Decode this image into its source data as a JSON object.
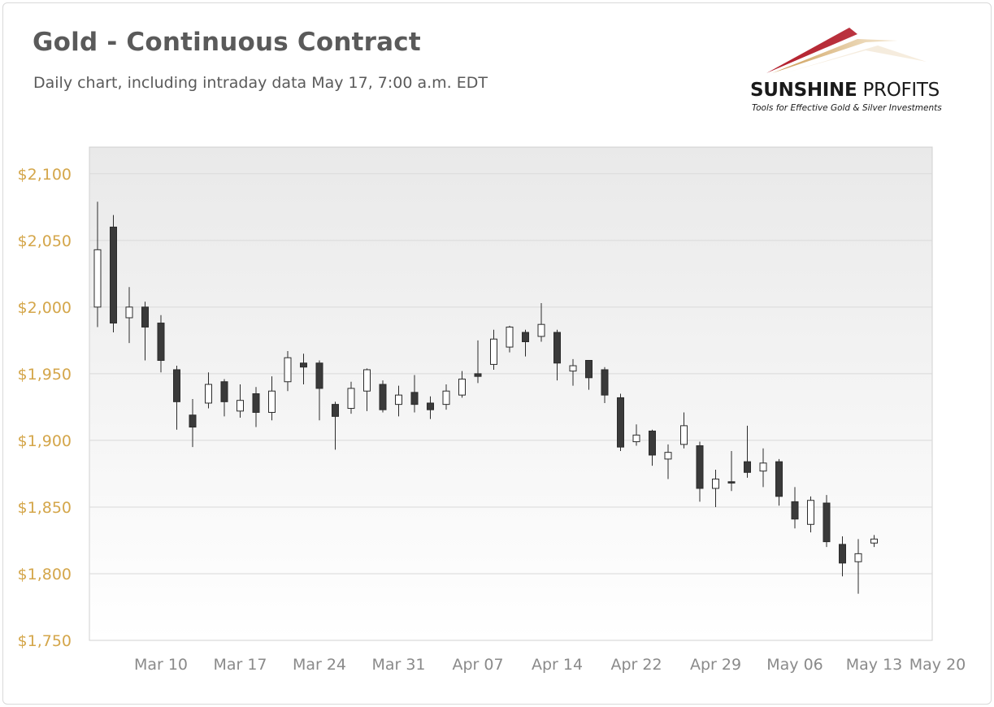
{
  "header": {
    "title": "Gold - Continuous Contract",
    "subtitle": "Daily chart, including intraday data May 17, 7:00 a.m. EDT"
  },
  "logo": {
    "name_bold": "SUNSHINE",
    "name_light": " PROFITS",
    "tagline": "Tools for Effective Gold & Silver Investments"
  },
  "colors": {
    "up_fill": "#ffffff",
    "down_fill": "#3a3a3a",
    "candle_stroke": "#2b2b2b",
    "y_tick_color": "#d4a64a",
    "x_tick_color": "#8a8a8a",
    "gridline": "#d9d9d9"
  },
  "chart_data": {
    "type": "candlestick",
    "title": "Gold - Continuous Contract",
    "subtitle": "Daily chart, including intraday data May 17, 7:00 a.m. EDT",
    "ylim": [
      1750,
      2120
    ],
    "y_ticks": [
      1750,
      1800,
      1850,
      1900,
      1950,
      2000,
      2050,
      2100
    ],
    "y_tick_labels": [
      "$1,750",
      "$1,800",
      "$1,850",
      "$1,900",
      "$1,950",
      "$2,000",
      "$2,050",
      "$2,100"
    ],
    "x_tick_labels": [
      "Mar 10",
      "Mar 17",
      "Mar 24",
      "Mar 31",
      "Apr 07",
      "Apr 14",
      "Apr 22",
      "Apr 29",
      "May 06",
      "May 13",
      "May 20"
    ],
    "grid": true,
    "legend": "none",
    "candles": [
      {
        "date": "Mar 08",
        "open": 2000,
        "high": 2079,
        "low": 1985,
        "close": 2043
      },
      {
        "date": "Mar 09",
        "open": 2060,
        "high": 2069,
        "low": 1981,
        "close": 1988
      },
      {
        "date": "Mar 10",
        "open": 1992,
        "high": 2015,
        "low": 1973,
        "close": 2000
      },
      {
        "date": "Mar 11",
        "open": 2000,
        "high": 2004,
        "low": 1960,
        "close": 1985
      },
      {
        "date": "Mar 14",
        "open": 1988,
        "high": 1994,
        "low": 1951,
        "close": 1960
      },
      {
        "date": "Mar 15",
        "open": 1953,
        "high": 1956,
        "low": 1908,
        "close": 1929
      },
      {
        "date": "Mar 16",
        "open": 1919,
        "high": 1931,
        "low": 1895,
        "close": 1910
      },
      {
        "date": "Mar 17",
        "open": 1928,
        "high": 1951,
        "low": 1924,
        "close": 1942
      },
      {
        "date": "Mar 18",
        "open": 1944,
        "high": 1946,
        "low": 1918,
        "close": 1929
      },
      {
        "date": "Mar 21",
        "open": 1922,
        "high": 1942,
        "low": 1917,
        "close": 1930
      },
      {
        "date": "Mar 22",
        "open": 1935,
        "high": 1940,
        "low": 1910,
        "close": 1921
      },
      {
        "date": "Mar 23",
        "open": 1921,
        "high": 1948,
        "low": 1915,
        "close": 1937
      },
      {
        "date": "Mar 24",
        "open": 1944,
        "high": 1967,
        "low": 1937,
        "close": 1962
      },
      {
        "date": "Mar 25",
        "open": 1958,
        "high": 1965,
        "low": 1942,
        "close": 1955
      },
      {
        "date": "Mar 28",
        "open": 1958,
        "high": 1960,
        "low": 1915,
        "close": 1939
      },
      {
        "date": "Mar 29",
        "open": 1927,
        "high": 1929,
        "low": 1893,
        "close": 1918
      },
      {
        "date": "Mar 30",
        "open": 1924,
        "high": 1944,
        "low": 1920,
        "close": 1939
      },
      {
        "date": "Mar 31",
        "open": 1937,
        "high": 1954,
        "low": 1922,
        "close": 1953
      },
      {
        "date": "Apr 01",
        "open": 1942,
        "high": 1945,
        "low": 1921,
        "close": 1923
      },
      {
        "date": "Apr 04",
        "open": 1927,
        "high": 1941,
        "low": 1918,
        "close": 1934
      },
      {
        "date": "Apr 05",
        "open": 1936,
        "high": 1949,
        "low": 1921,
        "close": 1927
      },
      {
        "date": "Apr 06",
        "open": 1928,
        "high": 1933,
        "low": 1916,
        "close": 1923
      },
      {
        "date": "Apr 07",
        "open": 1927,
        "high": 1942,
        "low": 1923,
        "close": 1937
      },
      {
        "date": "Apr 08",
        "open": 1934,
        "high": 1952,
        "low": 1932,
        "close": 1946
      },
      {
        "date": "Apr 11",
        "open": 1950,
        "high": 1975,
        "low": 1943,
        "close": 1948
      },
      {
        "date": "Apr 12",
        "open": 1957,
        "high": 1983,
        "low": 1953,
        "close": 1976
      },
      {
        "date": "Apr 13",
        "open": 1970,
        "high": 1986,
        "low": 1966,
        "close": 1985
      },
      {
        "date": "Apr 14",
        "open": 1981,
        "high": 1983,
        "low": 1963,
        "close": 1974
      },
      {
        "date": "Apr 18",
        "open": 1978,
        "high": 2003,
        "low": 1974,
        "close": 1987
      },
      {
        "date": "Apr 19",
        "open": 1981,
        "high": 1983,
        "low": 1945,
        "close": 1958
      },
      {
        "date": "Apr 20",
        "open": 1952,
        "high": 1961,
        "low": 1941,
        "close": 1956
      },
      {
        "date": "Apr 21",
        "open": 1960,
        "high": 1960,
        "low": 1938,
        "close": 1947
      },
      {
        "date": "Apr 22",
        "open": 1953,
        "high": 1955,
        "low": 1928,
        "close": 1934
      },
      {
        "date": "Apr 25",
        "open": 1932,
        "high": 1935,
        "low": 1892,
        "close": 1895
      },
      {
        "date": "Apr 26",
        "open": 1899,
        "high": 1912,
        "low": 1896,
        "close": 1904
      },
      {
        "date": "Apr 27",
        "open": 1907,
        "high": 1908,
        "low": 1881,
        "close": 1889
      },
      {
        "date": "Apr 28",
        "open": 1886,
        "high": 1897,
        "low": 1871,
        "close": 1891
      },
      {
        "date": "Apr 29",
        "open": 1897,
        "high": 1921,
        "low": 1894,
        "close": 1911
      },
      {
        "date": "May 02",
        "open": 1896,
        "high": 1899,
        "low": 1854,
        "close": 1864
      },
      {
        "date": "May 03",
        "open": 1864,
        "high": 1878,
        "low": 1850,
        "close": 1871
      },
      {
        "date": "May 04",
        "open": 1869,
        "high": 1892,
        "low": 1862,
        "close": 1868
      },
      {
        "date": "May 05",
        "open": 1884,
        "high": 1911,
        "low": 1872,
        "close": 1876
      },
      {
        "date": "May 06",
        "open": 1877,
        "high": 1894,
        "low": 1865,
        "close": 1883
      },
      {
        "date": "May 09",
        "open": 1884,
        "high": 1886,
        "low": 1851,
        "close": 1858
      },
      {
        "date": "May 10",
        "open": 1854,
        "high": 1865,
        "low": 1834,
        "close": 1841
      },
      {
        "date": "May 11",
        "open": 1837,
        "high": 1858,
        "low": 1831,
        "close": 1855
      },
      {
        "date": "May 12",
        "open": 1853,
        "high": 1859,
        "low": 1820,
        "close": 1824
      },
      {
        "date": "May 13",
        "open": 1822,
        "high": 1828,
        "low": 1798,
        "close": 1808
      },
      {
        "date": "May 16",
        "open": 1809,
        "high": 1826,
        "low": 1785,
        "close": 1815
      },
      {
        "date": "May 17",
        "open": 1823,
        "high": 1829,
        "low": 1820,
        "close": 1826
      }
    ]
  }
}
